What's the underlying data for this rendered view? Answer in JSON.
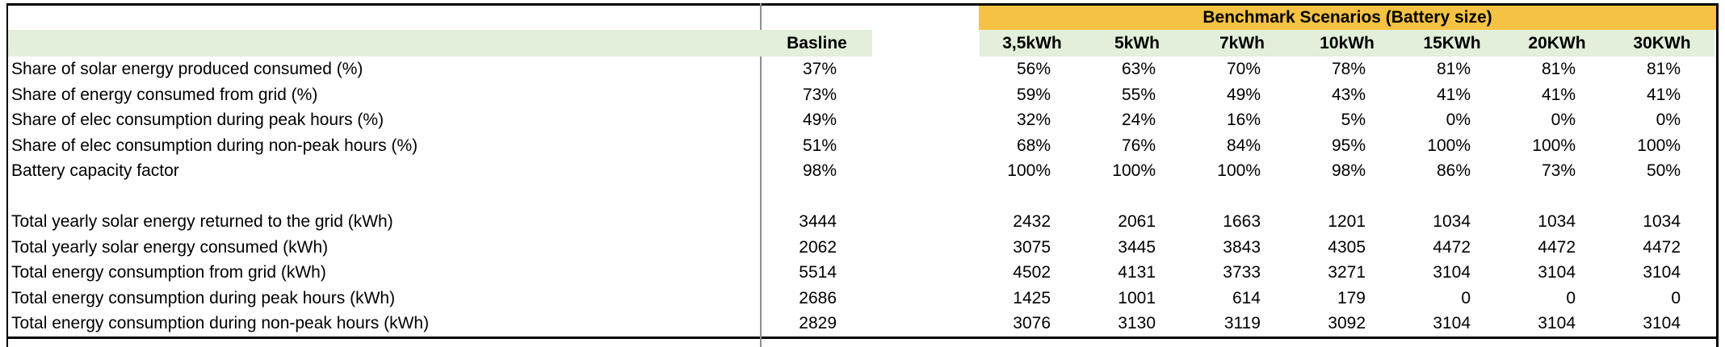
{
  "banner": {
    "title": "Benchmark Scenarios (Battery size)"
  },
  "header": {
    "baseline_label": "Basline",
    "scenarios": [
      "3,5kWh",
      "5kWh",
      "7kWh",
      "10kWh",
      "15KWh",
      "20KWh",
      "30KWh"
    ]
  },
  "rows": [
    {
      "label": "Share of solar energy produced consumed (%)",
      "baseline": "37%",
      "values": [
        "56%",
        "63%",
        "70%",
        "78%",
        "81%",
        "81%",
        "81%"
      ]
    },
    {
      "label": "Share of energy consumed from grid (%)",
      "baseline": "73%",
      "values": [
        "59%",
        "55%",
        "49%",
        "43%",
        "41%",
        "41%",
        "41%"
      ]
    },
    {
      "label": "Share of elec consumption during peak hours (%)",
      "baseline": "49%",
      "values": [
        "32%",
        "24%",
        "16%",
        "5%",
        "0%",
        "0%",
        "0%"
      ]
    },
    {
      "label": "Share of elec consumption during non-peak hours (%)",
      "baseline": "51%",
      "values": [
        "68%",
        "76%",
        "84%",
        "95%",
        "100%",
        "100%",
        "100%"
      ]
    },
    {
      "label": "Battery capacity factor",
      "baseline": "98%",
      "values": [
        "100%",
        "100%",
        "100%",
        "98%",
        "86%",
        "73%",
        "50%"
      ]
    },
    {
      "label": "",
      "baseline": "",
      "values": [
        "",
        "",
        "",
        "",
        "",
        "",
        ""
      ]
    },
    {
      "label": "Total yearly solar energy returned to the grid (kWh)",
      "baseline": "3444",
      "values": [
        "2432",
        "2061",
        "1663",
        "1201",
        "1034",
        "1034",
        "1034"
      ]
    },
    {
      "label": "Total yearly solar energy consumed (kWh)",
      "baseline": "2062",
      "values": [
        "3075",
        "3445",
        "3843",
        "4305",
        "4472",
        "4472",
        "4472"
      ]
    },
    {
      "label": "Total energy consumption from grid (kWh)",
      "baseline": "5514",
      "values": [
        "4502",
        "4131",
        "3733",
        "3271",
        "3104",
        "3104",
        "3104"
      ]
    },
    {
      "label": "Total energy consumption during peak hours (kWh)",
      "baseline": "2686",
      "values": [
        "1425",
        "1001",
        "614",
        "179",
        "0",
        "0",
        "0"
      ]
    },
    {
      "label": "Total energy consumption during non-peak hours (kWh)",
      "baseline": "2829",
      "values": [
        "3076",
        "3130",
        "3119",
        "3092",
        "3104",
        "3104",
        "3104"
      ]
    }
  ],
  "colors": {
    "banner_orange": "#F5C243",
    "header_green": "#E2EFDA",
    "divider_gray": "#8E8E8E",
    "border_black": "#000000",
    "background": "#FFFFFF"
  }
}
